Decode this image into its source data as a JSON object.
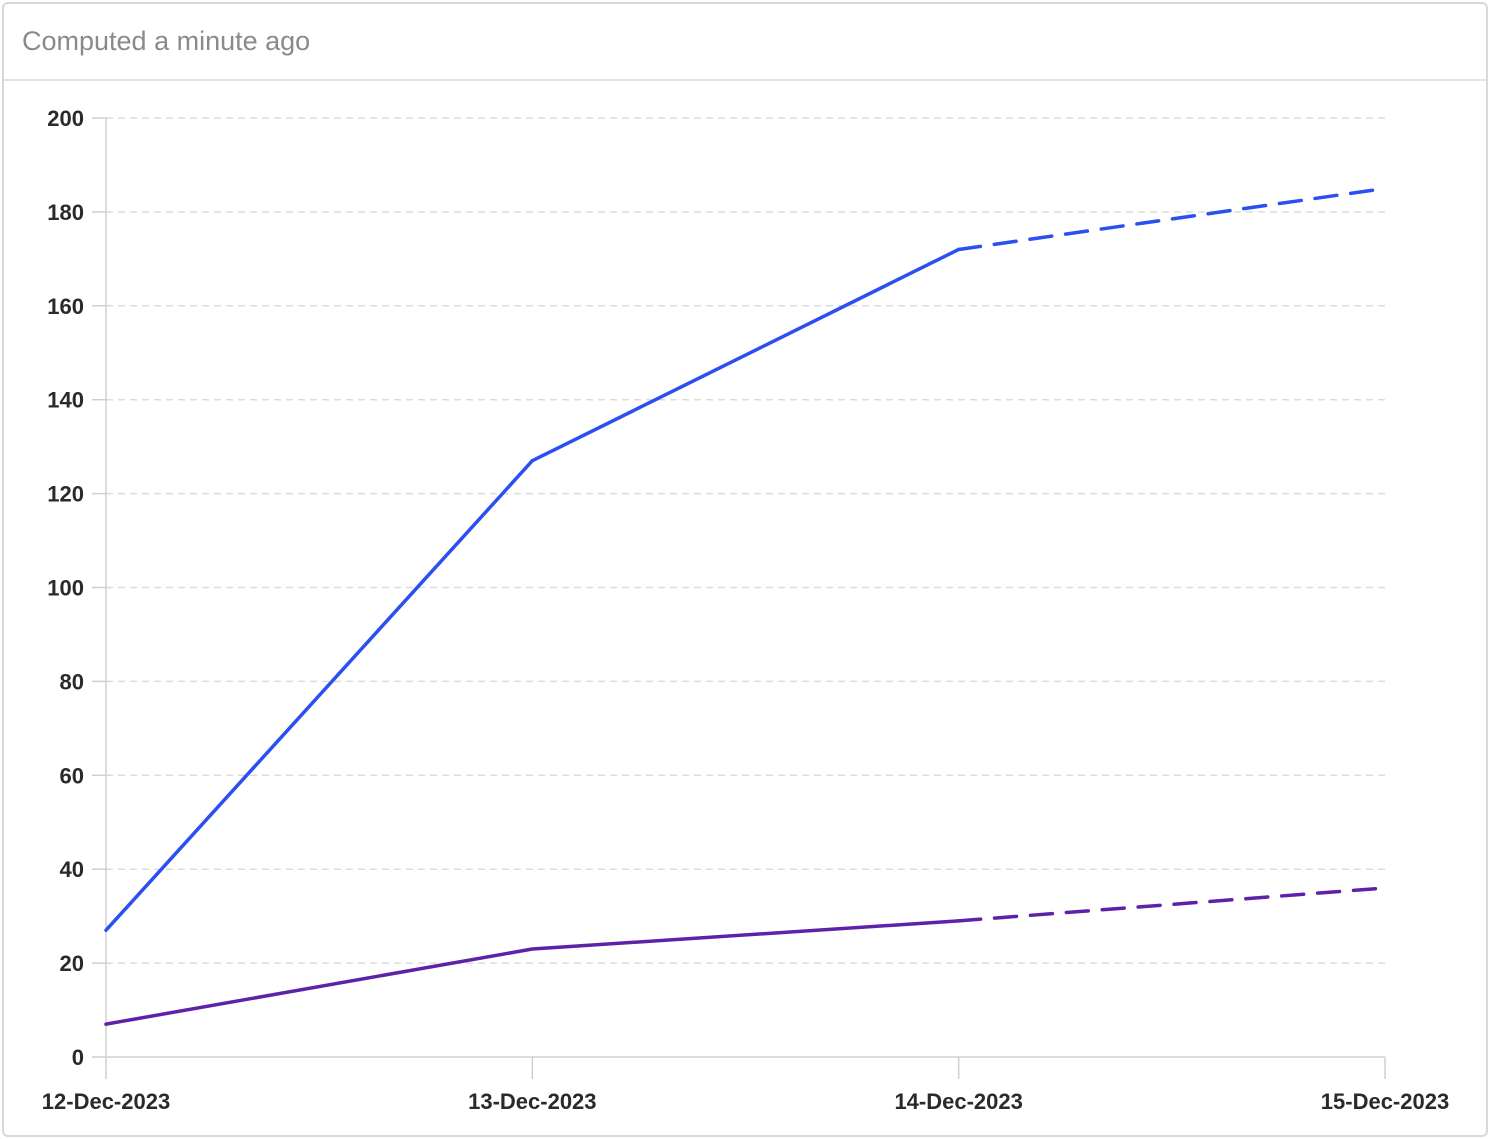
{
  "header": {
    "status_text": "Computed a minute ago"
  },
  "chart_data": {
    "type": "line",
    "categories": [
      "12-Dec-2023",
      "13-Dec-2023",
      "14-Dec-2023",
      "15-Dec-2023"
    ],
    "ylim": [
      0,
      200
    ],
    "yticks": [
      0,
      20,
      40,
      60,
      80,
      100,
      120,
      140,
      160,
      180,
      200
    ],
    "grid": true,
    "series": [
      {
        "values": [
          27,
          127,
          172,
          185
        ],
        "color": "#2b4ff0",
        "dashed_from_index": 2
      },
      {
        "values": [
          7,
          23,
          29,
          36
        ],
        "color": "#5e22a8",
        "dashed_from_index": 2
      }
    ]
  }
}
